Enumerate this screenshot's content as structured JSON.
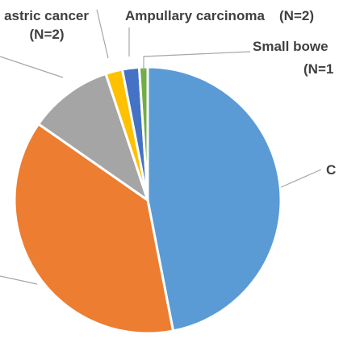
{
  "chart_data": {
    "type": "pie",
    "slices": [
      {
        "key": "c",
        "label": "C",
        "label_count": "",
        "value": 46,
        "color": "#5b9bd5"
      },
      {
        "key": "o",
        "label": "",
        "label_count": "",
        "value": 37,
        "color": "#ed7d31"
      },
      {
        "key": "g",
        "label": "",
        "label_count": "",
        "value": 10,
        "color": "#a5a5a5"
      },
      {
        "key": "ga",
        "label": "astric cancer",
        "label_count": "(N=2)",
        "value": 2,
        "color": "#ffc000"
      },
      {
        "key": "am",
        "label": "Ampullary carcinoma",
        "label_count": "(N=2)",
        "value": 2,
        "color": "#4472c4"
      },
      {
        "key": "sb",
        "label": "Small bowe",
        "label_count": "(N=1",
        "value": 1,
        "color": "#70ad47"
      }
    ]
  }
}
